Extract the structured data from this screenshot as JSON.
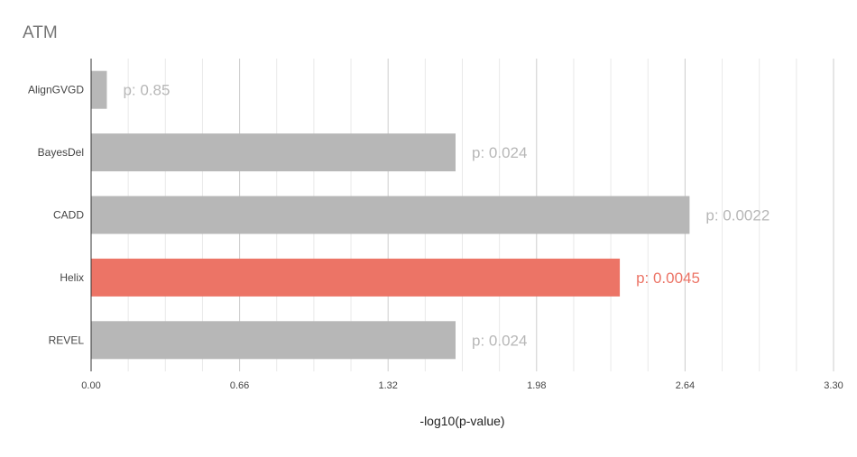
{
  "chart_data": {
    "type": "bar",
    "orientation": "horizontal",
    "title": "ATM",
    "xlabel": "-log10(p-value)",
    "ylabel": "",
    "categories": [
      "AlignGVGD",
      "BayesDel",
      "CADD",
      "Helix",
      "REVEL"
    ],
    "values": [
      0.07,
      1.62,
      2.66,
      2.35,
      1.62
    ],
    "value_labels": [
      "p: 0.85",
      "p: 0.024",
      "p: 0.0022",
      "p: 0.0045",
      "p: 0.024"
    ],
    "highlight_category": "Helix",
    "xlim": [
      0,
      3.3
    ],
    "xticks": [
      0.0,
      0.66,
      1.32,
      1.98,
      2.64,
      3.3
    ],
    "xtick_labels": [
      "0.00",
      "0.66",
      "1.32",
      "1.98",
      "2.64",
      "3.30"
    ],
    "minor_grid_step": 0.165,
    "grid": true,
    "legend": "none",
    "colors": {
      "bar": "#b7b7b7",
      "highlight": "#ec7466",
      "label": "#b7b7b7",
      "highlight_label": "#ec7466",
      "major_grid": "#cccccc",
      "minor_grid": "#e9e9e9",
      "axis": "#333333",
      "text": "#444444",
      "title": "#757575"
    }
  }
}
